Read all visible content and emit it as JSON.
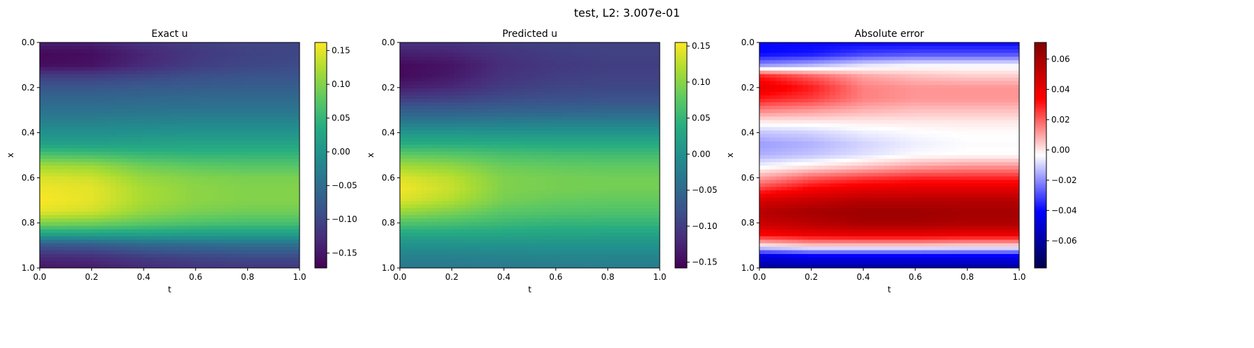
{
  "figure": {
    "suptitle": "test, L2: 3.007e-01"
  },
  "chart_data": [
    {
      "type": "heatmap",
      "title": "Exact u",
      "xlabel": "t",
      "ylabel": "x",
      "xlim": [
        0.0,
        1.0
      ],
      "ylim": [
        1.0,
        0.0
      ],
      "xticks": [
        "0.0",
        "0.2",
        "0.4",
        "0.6",
        "0.8",
        "1.0"
      ],
      "yticks": [
        "0.0",
        "0.2",
        "0.4",
        "0.6",
        "0.8",
        "1.0"
      ],
      "colormap": "viridis",
      "colorbar": {
        "vmin": -0.172,
        "vmax": 0.162,
        "ticks": [
          -0.15,
          -0.1,
          -0.05,
          0.0,
          0.05,
          0.1,
          0.15
        ],
        "tick_labels": [
          "−0.15",
          "−0.10",
          "−0.05",
          "0.00",
          "0.05",
          "0.10",
          "0.15"
        ]
      },
      "x_samples": [
        0.0,
        0.2,
        0.4,
        0.6,
        0.8,
        1.0
      ],
      "y_samples": [
        0.0,
        0.05,
        0.1,
        0.15,
        0.2,
        0.25,
        0.3,
        0.35,
        0.4,
        0.45,
        0.5,
        0.55,
        0.6,
        0.65,
        0.7,
        0.75,
        0.8,
        0.85,
        0.9,
        0.95,
        1.0
      ],
      "values": [
        [
          -0.14,
          -0.14,
          -0.12,
          -0.11,
          -0.1,
          -0.1
        ],
        [
          -0.165,
          -0.16,
          -0.135,
          -0.115,
          -0.105,
          -0.1
        ],
        [
          -0.16,
          -0.155,
          -0.13,
          -0.11,
          -0.1,
          -0.095
        ],
        [
          -0.11,
          -0.11,
          -0.1,
          -0.09,
          -0.085,
          -0.085
        ],
        [
          -0.08,
          -0.08,
          -0.075,
          -0.072,
          -0.07,
          -0.07
        ],
        [
          -0.06,
          -0.06,
          -0.058,
          -0.056,
          -0.055,
          -0.055
        ],
        [
          -0.045,
          -0.045,
          -0.042,
          -0.04,
          -0.04,
          -0.04
        ],
        [
          -0.025,
          -0.025,
          -0.022,
          -0.02,
          -0.02,
          -0.02
        ],
        [
          -0.005,
          -0.005,
          -0.002,
          0.0,
          0.0,
          0.0
        ],
        [
          0.02,
          0.02,
          0.022,
          0.025,
          0.025,
          0.025
        ],
        [
          0.07,
          0.065,
          0.055,
          0.05,
          0.05,
          0.05
        ],
        [
          0.12,
          0.115,
          0.09,
          0.08,
          0.075,
          0.075
        ],
        [
          0.145,
          0.14,
          0.11,
          0.1,
          0.095,
          0.095
        ],
        [
          0.155,
          0.15,
          0.12,
          0.105,
          0.1,
          0.1
        ],
        [
          0.16,
          0.15,
          0.12,
          0.105,
          0.1,
          0.1
        ],
        [
          0.15,
          0.14,
          0.11,
          0.095,
          0.09,
          0.09
        ],
        [
          0.1,
          0.095,
          0.08,
          0.07,
          0.065,
          0.065
        ],
        [
          0.02,
          0.02,
          0.02,
          0.015,
          0.015,
          0.015
        ],
        [
          -0.08,
          -0.075,
          -0.06,
          -0.055,
          -0.05,
          -0.05
        ],
        [
          -0.13,
          -0.125,
          -0.11,
          -0.1,
          -0.095,
          -0.095
        ],
        [
          -0.15,
          -0.145,
          -0.13,
          -0.12,
          -0.115,
          -0.115
        ]
      ]
    },
    {
      "type": "heatmap",
      "title": "Predicted u",
      "xlabel": "t",
      "ylabel": "x",
      "xlim": [
        0.0,
        1.0
      ],
      "ylim": [
        1.0,
        0.0
      ],
      "xticks": [
        "0.0",
        "0.2",
        "0.4",
        "0.6",
        "0.8",
        "1.0"
      ],
      "yticks": [
        "0.0",
        "0.2",
        "0.4",
        "0.6",
        "0.8",
        "1.0"
      ],
      "colormap": "viridis",
      "colorbar": {
        "vmin": -0.158,
        "vmax": 0.155,
        "ticks": [
          -0.15,
          -0.1,
          -0.05,
          0.0,
          0.05,
          0.1,
          0.15
        ],
        "tick_labels": [
          "−0.15",
          "−0.10",
          "−0.05",
          "0.00",
          "0.05",
          "0.10",
          "0.15"
        ]
      },
      "x_samples": [
        0.0,
        0.2,
        0.4,
        0.6,
        0.8,
        1.0
      ],
      "y_samples": [
        0.0,
        0.05,
        0.1,
        0.15,
        0.2,
        0.25,
        0.3,
        0.35,
        0.4,
        0.45,
        0.5,
        0.55,
        0.6,
        0.65,
        0.7,
        0.75,
        0.8,
        0.85,
        0.9,
        0.95,
        1.0
      ],
      "values": [
        [
          -0.11,
          -0.11,
          -0.1,
          -0.095,
          -0.095,
          -0.095
        ],
        [
          -0.13,
          -0.125,
          -0.11,
          -0.1,
          -0.095,
          -0.095
        ],
        [
          -0.15,
          -0.14,
          -0.115,
          -0.105,
          -0.1,
          -0.1
        ],
        [
          -0.15,
          -0.135,
          -0.11,
          -0.1,
          -0.095,
          -0.095
        ],
        [
          -0.13,
          -0.12,
          -0.1,
          -0.092,
          -0.09,
          -0.09
        ],
        [
          -0.1,
          -0.095,
          -0.085,
          -0.08,
          -0.078,
          -0.078
        ],
        [
          -0.065,
          -0.065,
          -0.06,
          -0.058,
          -0.056,
          -0.056
        ],
        [
          -0.03,
          -0.03,
          -0.028,
          -0.026,
          -0.025,
          -0.025
        ],
        [
          0.005,
          0.005,
          0.005,
          0.005,
          0.005,
          0.005
        ],
        [
          0.04,
          0.04,
          0.038,
          0.035,
          0.035,
          0.035
        ],
        [
          0.08,
          0.075,
          0.065,
          0.062,
          0.06,
          0.06
        ],
        [
          0.115,
          0.105,
          0.085,
          0.08,
          0.078,
          0.078
        ],
        [
          0.14,
          0.125,
          0.095,
          0.09,
          0.088,
          0.088
        ],
        [
          0.15,
          0.13,
          0.095,
          0.09,
          0.088,
          0.088
        ],
        [
          0.14,
          0.12,
          0.09,
          0.082,
          0.08,
          0.08
        ],
        [
          0.11,
          0.095,
          0.075,
          0.07,
          0.068,
          0.068
        ],
        [
          0.07,
          0.065,
          0.055,
          0.05,
          0.05,
          0.05
        ],
        [
          0.03,
          0.03,
          0.028,
          0.026,
          0.025,
          0.025
        ],
        [
          0.0,
          0.0,
          0.002,
          0.002,
          0.002,
          0.002
        ],
        [
          -0.02,
          -0.02,
          -0.018,
          -0.016,
          -0.015,
          -0.015
        ],
        [
          -0.03,
          -0.03,
          -0.028,
          -0.026,
          -0.025,
          -0.025
        ]
      ]
    },
    {
      "type": "heatmap",
      "title": "Absolute error",
      "xlabel": "t",
      "ylabel": "x",
      "xlim": [
        0.0,
        1.0
      ],
      "ylim": [
        1.0,
        0.0
      ],
      "xticks": [
        "0.0",
        "0.2",
        "0.4",
        "0.6",
        "0.8",
        "1.0"
      ],
      "yticks": [
        "0.0",
        "0.2",
        "0.4",
        "0.6",
        "0.8",
        "1.0"
      ],
      "colormap": "seismic",
      "colorbar": {
        "vmin": -0.078,
        "vmax": 0.071,
        "ticks": [
          -0.06,
          -0.04,
          -0.02,
          0.0,
          0.02,
          0.04,
          0.06
        ],
        "tick_labels": [
          "−0.06",
          "−0.04",
          "−0.02",
          "0.00",
          "0.02",
          "0.04",
          "0.06"
        ]
      },
      "x_samples": [
        0.0,
        0.2,
        0.4,
        0.6,
        0.8,
        1.0
      ],
      "y_samples": [
        0.0,
        0.05,
        0.1,
        0.15,
        0.2,
        0.25,
        0.3,
        0.35,
        0.4,
        0.45,
        0.5,
        0.55,
        0.6,
        0.65,
        0.7,
        0.75,
        0.8,
        0.85,
        0.9,
        0.95,
        1.0
      ],
      "values": [
        [
          -0.04,
          -0.04,
          -0.04,
          -0.04,
          -0.04,
          -0.04
        ],
        [
          -0.04,
          -0.038,
          -0.032,
          -0.03,
          -0.03,
          -0.03
        ],
        [
          -0.02,
          -0.015,
          -0.008,
          -0.005,
          -0.005,
          -0.005
        ],
        [
          0.03,
          0.02,
          0.01,
          0.006,
          0.004,
          0.004
        ],
        [
          0.04,
          0.03,
          0.015,
          0.012,
          0.012,
          0.012
        ],
        [
          0.03,
          0.025,
          0.015,
          0.012,
          0.012,
          0.012
        ],
        [
          0.015,
          0.012,
          0.008,
          0.006,
          0.006,
          0.006
        ],
        [
          0.0,
          0.0,
          0.0,
          0.0,
          0.0,
          0.0
        ],
        [
          -0.012,
          -0.01,
          -0.006,
          -0.004,
          -0.003,
          -0.003
        ],
        [
          -0.018,
          -0.015,
          -0.01,
          -0.006,
          -0.004,
          -0.004
        ],
        [
          -0.015,
          -0.012,
          -0.008,
          -0.004,
          -0.003,
          -0.003
        ],
        [
          -0.005,
          0.0,
          0.005,
          0.01,
          0.012,
          0.012
        ],
        [
          0.01,
          0.02,
          0.025,
          0.028,
          0.028,
          0.028
        ],
        [
          0.025,
          0.035,
          0.04,
          0.042,
          0.042,
          0.042
        ],
        [
          0.045,
          0.05,
          0.055,
          0.055,
          0.055,
          0.055
        ],
        [
          0.055,
          0.06,
          0.062,
          0.062,
          0.06,
          0.06
        ],
        [
          0.05,
          0.055,
          0.06,
          0.06,
          0.058,
          0.058
        ],
        [
          0.035,
          0.04,
          0.042,
          0.042,
          0.04,
          0.04
        ],
        [
          0.0,
          0.005,
          0.005,
          0.005,
          0.004,
          0.004
        ],
        [
          -0.05,
          -0.045,
          -0.045,
          -0.045,
          -0.045,
          -0.045
        ],
        [
          -0.06,
          -0.06,
          -0.06,
          -0.06,
          -0.06,
          -0.06
        ]
      ]
    }
  ]
}
